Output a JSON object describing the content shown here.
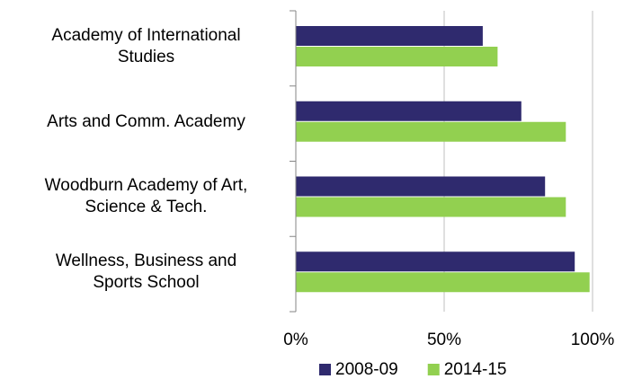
{
  "chart_data": {
    "type": "bar",
    "orientation": "horizontal",
    "categories": [
      "Academy of International\nStudies",
      "Arts and Comm. Academy",
      "Woodburn Academy of Art,\nScience & Tech.",
      "Wellness, Business and\nSports School"
    ],
    "series": [
      {
        "name": "2008-09",
        "color": "#2f2a6e",
        "values": [
          63,
          76,
          84,
          94
        ]
      },
      {
        "name": "2014-15",
        "color": "#92d050",
        "values": [
          68,
          91,
          91,
          99
        ]
      }
    ],
    "xlim": [
      0,
      100
    ],
    "xticks": [
      {
        "value": 0,
        "label": "0%"
      },
      {
        "value": 50,
        "label": "50%"
      },
      {
        "value": 100,
        "label": "100%"
      }
    ],
    "grid": true,
    "legend": "bottom"
  }
}
